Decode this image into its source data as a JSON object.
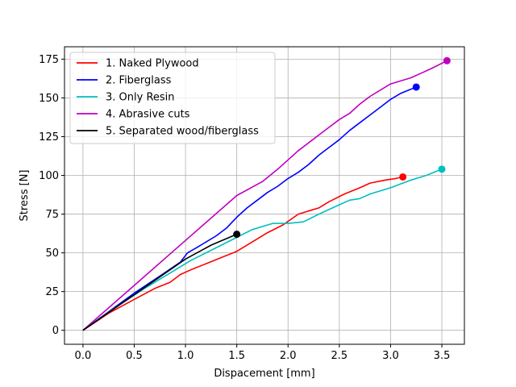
{
  "chart_data": {
    "type": "line",
    "title": "",
    "xlabel": "Dispacement [mm]",
    "ylabel": "Stress [N]",
    "xlim": [
      -0.18,
      3.72
    ],
    "ylim": [
      -9,
      183
    ],
    "xticks": [
      0.0,
      0.5,
      1.0,
      1.5,
      2.0,
      2.5,
      3.0,
      3.5
    ],
    "xtick_labels": [
      "0.0",
      "0.5",
      "1.0",
      "1.5",
      "2.0",
      "2.5",
      "3.0",
      "3.5"
    ],
    "yticks": [
      0,
      25,
      50,
      75,
      100,
      125,
      150,
      175
    ],
    "ytick_labels": [
      "0",
      "25",
      "50",
      "75",
      "100",
      "125",
      "150",
      "175"
    ],
    "grid": true,
    "legend_position": "upper-left",
    "series": [
      {
        "name": "1. Naked Plywood",
        "color": "#ff0000",
        "end_marker": true,
        "x": [
          0.0,
          0.25,
          0.5,
          0.7,
          0.85,
          0.95,
          1.05,
          1.2,
          1.35,
          1.5,
          1.65,
          1.8,
          1.95,
          2.1,
          2.2,
          2.3,
          2.4,
          2.55,
          2.7,
          2.8,
          2.95,
          3.05,
          3.12
        ],
        "y": [
          0,
          11,
          20,
          27,
          31,
          36,
          39,
          43,
          47,
          51,
          57,
          63,
          68,
          75,
          77,
          79,
          83,
          88,
          92,
          95,
          97,
          98,
          99
        ]
      },
      {
        "name": "2. Fiberglass",
        "color": "#0000ff",
        "end_marker": true,
        "x": [
          0.0,
          0.25,
          0.5,
          0.75,
          0.95,
          1.02,
          1.1,
          1.2,
          1.3,
          1.4,
          1.5,
          1.6,
          1.7,
          1.8,
          1.9,
          2.0,
          2.1,
          2.2,
          2.3,
          2.4,
          2.5,
          2.6,
          2.7,
          2.8,
          2.9,
          3.0,
          3.1,
          3.25
        ],
        "y": [
          0,
          12,
          24,
          35,
          44,
          50,
          53,
          57,
          61,
          66,
          73,
          79,
          84,
          89,
          93,
          98,
          102,
          107,
          113,
          118,
          123,
          129,
          134,
          139,
          144,
          149,
          153,
          157
        ]
      },
      {
        "name": "3. Only Resin",
        "color": "#00bfbf",
        "end_marker": true,
        "x": [
          0.0,
          0.3,
          0.6,
          0.85,
          1.05,
          1.2,
          1.35,
          1.5,
          1.65,
          1.85,
          2.0,
          2.15,
          2.3,
          2.5,
          2.6,
          2.7,
          2.8,
          3.0,
          3.2,
          3.35,
          3.5
        ],
        "y": [
          0,
          14,
          27,
          37,
          45,
          50,
          55,
          60,
          65,
          69,
          69,
          70,
          75,
          81,
          84,
          85,
          88,
          92,
          97,
          100,
          104
        ]
      },
      {
        "name": "4. Abrasive cuts",
        "color": "#bf00bf",
        "end_marker": true,
        "x": [
          0.0,
          0.5,
          1.0,
          1.5,
          1.75,
          1.9,
          2.0,
          2.1,
          2.2,
          2.3,
          2.4,
          2.5,
          2.6,
          2.7,
          2.8,
          3.0,
          3.2,
          3.3,
          3.4,
          3.55
        ],
        "y": [
          0,
          29,
          58,
          87,
          96,
          104,
          110,
          116,
          121,
          126,
          131,
          136,
          140,
          146,
          151,
          159,
          163,
          166,
          169,
          174
        ]
      },
      {
        "name": "5. Separated wood/fiberglass",
        "color": "#000000",
        "end_marker": true,
        "x": [
          0.0,
          0.5,
          1.0,
          1.25,
          1.5
        ],
        "y": [
          0,
          23,
          46,
          55,
          62
        ]
      }
    ]
  }
}
